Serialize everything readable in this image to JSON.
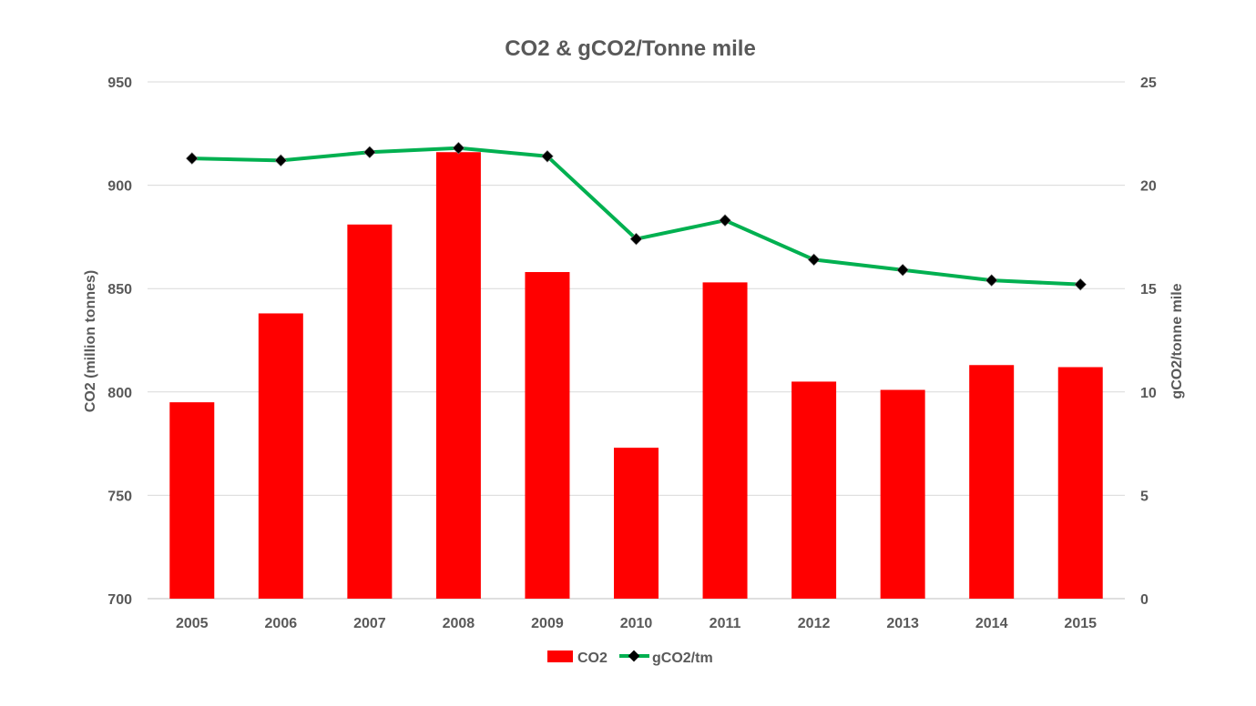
{
  "chart_data": {
    "type": "bar",
    "title": "CO2 & gCO2/Tonne mile",
    "categories": [
      "2005",
      "2006",
      "2007",
      "2008",
      "2009",
      "2010",
      "2011",
      "2012",
      "2013",
      "2014",
      "2015"
    ],
    "series": [
      {
        "name": "CO2",
        "type": "bar",
        "axis": "left",
        "color": "#ff0000",
        "values": [
          795,
          838,
          881,
          916,
          858,
          773,
          853,
          805,
          801,
          813,
          812
        ]
      },
      {
        "name": "gCO2/tm",
        "type": "line",
        "axis": "right",
        "color": "#00b050",
        "marker_color": "#000000",
        "values": [
          21.3,
          21.2,
          21.6,
          21.8,
          21.4,
          17.4,
          18.3,
          16.4,
          15.9,
          15.4,
          15.2
        ]
      }
    ],
    "ylabel": "CO2 (million tonnes)",
    "ylim": [
      700,
      950
    ],
    "yticks": [
      "700",
      "750",
      "800",
      "850",
      "900",
      "950"
    ],
    "y2label": "gCO2/tonne mile",
    "y2lim": [
      0,
      25
    ],
    "y2ticks": [
      "0",
      "5",
      "10",
      "15",
      "20",
      "25"
    ],
    "grid": true,
    "legend": "bottom-center"
  }
}
